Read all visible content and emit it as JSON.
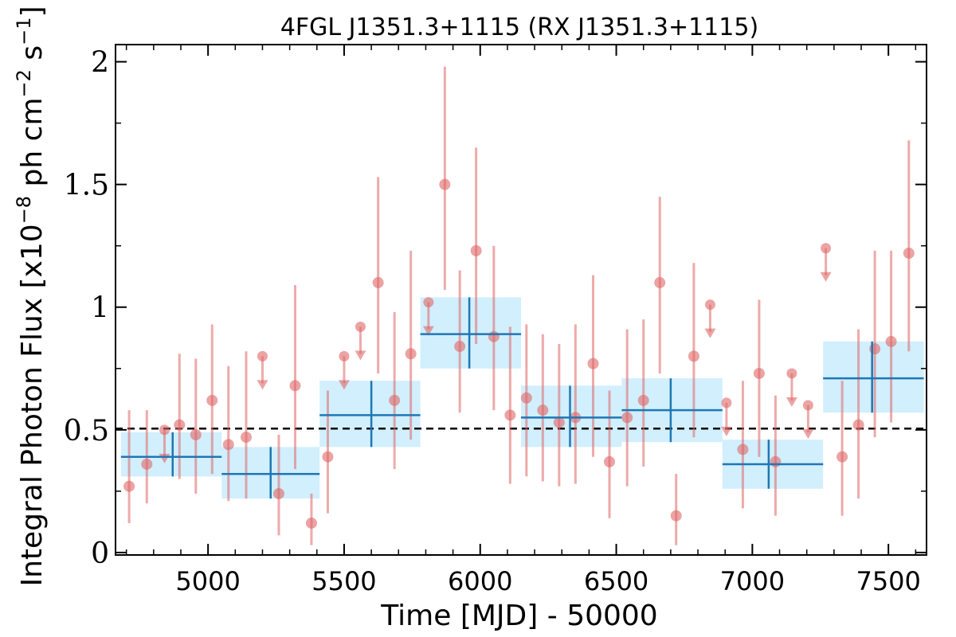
{
  "chart_data": {
    "type": "scatter",
    "title": "4FGL J1351.3+1115 (RX J1351.3+1115)",
    "xlabel": "Time [MJD] - 50000",
    "ylabel": "Integral Photon Flux [x10",
    "ylabel_exp1": "−8",
    "ylabel_mid": " ph cm",
    "ylabel_exp2": "−2",
    "ylabel_mid2": " s",
    "ylabel_exp3": "−1",
    "ylabel_end": "]",
    "xlim": [
      4660,
      7640
    ],
    "ylim": [
      -0.01,
      2.07
    ],
    "xticks": [
      5000,
      5500,
      6000,
      6500,
      7000,
      7500
    ],
    "xtick_labels": [
      "5000",
      "5500",
      "6000",
      "6500",
      "7000",
      "7500"
    ],
    "yticks": [
      0,
      0.5,
      1,
      1.5,
      2
    ],
    "ytick_labels": [
      "0",
      "0.5",
      "1",
      "1.5",
      "2"
    ],
    "mean_flux": 0.505,
    "colors": {
      "points": "#e06666",
      "binned_box": "#b3e5fc",
      "binned_line": "#1f77b4",
      "mean_line": "#000000"
    },
    "series": [
      {
        "kind": "short_bins",
        "points": [
          {
            "x": 4710,
            "y": 0.27,
            "err_lo": 0.15,
            "err_hi": 0.31
          },
          {
            "x": 4775,
            "y": 0.36,
            "err_lo": 0.16,
            "err_hi": 0.22
          },
          {
            "x": 4895,
            "y": 0.52,
            "err_lo": 0.22,
            "err_hi": 0.29
          },
          {
            "x": 4955,
            "y": 0.48,
            "err_lo": 0.24,
            "err_hi": 0.31
          },
          {
            "x": 5015,
            "y": 0.62,
            "err_lo": 0.3,
            "err_hi": 0.31
          },
          {
            "x": 5075,
            "y": 0.44,
            "err_lo": 0.23,
            "err_hi": 0.32
          },
          {
            "x": 5140,
            "y": 0.47,
            "err_lo": 0.25,
            "err_hi": 0.35
          },
          {
            "x": 5260,
            "y": 0.24,
            "err_lo": 0.17,
            "err_hi": 0.24
          },
          {
            "x": 5320,
            "y": 0.68,
            "err_lo": 0.34,
            "err_hi": 0.41
          },
          {
            "x": 5380,
            "y": 0.12,
            "err_lo": 0.09,
            "err_hi": 0.12
          },
          {
            "x": 5440,
            "y": 0.39,
            "err_lo": 0.23,
            "err_hi": 0.27
          },
          {
            "x": 5625,
            "y": 1.1,
            "err_lo": 0.37,
            "err_hi": 0.43
          },
          {
            "x": 5685,
            "y": 0.62,
            "err_lo": 0.28,
            "err_hi": 0.36
          },
          {
            "x": 5745,
            "y": 0.81,
            "err_lo": 0.35,
            "err_hi": 0.42
          },
          {
            "x": 5870,
            "y": 1.5,
            "err_lo": 0.43,
            "err_hi": 0.48
          },
          {
            "x": 5925,
            "y": 0.84,
            "err_lo": 0.27,
            "err_hi": 0.31
          },
          {
            "x": 5985,
            "y": 1.23,
            "err_lo": 0.38,
            "err_hi": 0.42
          },
          {
            "x": 6050,
            "y": 0.88,
            "err_lo": 0.3,
            "err_hi": 0.37
          },
          {
            "x": 6110,
            "y": 0.56,
            "err_lo": 0.28,
            "err_hi": 0.36
          },
          {
            "x": 6170,
            "y": 0.63,
            "err_lo": 0.32,
            "err_hi": 0.3
          },
          {
            "x": 6230,
            "y": 0.58,
            "err_lo": 0.29,
            "err_hi": 0.31
          },
          {
            "x": 6290,
            "y": 0.53,
            "err_lo": 0.26,
            "err_hi": 0.32
          },
          {
            "x": 6350,
            "y": 0.55,
            "err_lo": 0.27,
            "err_hi": 0.38
          },
          {
            "x": 6415,
            "y": 0.77,
            "err_lo": 0.38,
            "err_hi": 0.36
          },
          {
            "x": 6475,
            "y": 0.37,
            "err_lo": 0.23,
            "err_hi": 0.29
          },
          {
            "x": 6540,
            "y": 0.55,
            "err_lo": 0.28,
            "err_hi": 0.36
          },
          {
            "x": 6600,
            "y": 0.62,
            "err_lo": 0.27,
            "err_hi": 0.33
          },
          {
            "x": 6660,
            "y": 1.1,
            "err_lo": 0.37,
            "err_hi": 0.35
          },
          {
            "x": 6720,
            "y": 0.15,
            "err_lo": 0.12,
            "err_hi": 0.17
          },
          {
            "x": 6785,
            "y": 0.8,
            "err_lo": 0.33,
            "err_hi": 0.38
          },
          {
            "x": 6965,
            "y": 0.42,
            "err_lo": 0.24,
            "err_hi": 0.28
          },
          {
            "x": 7025,
            "y": 0.73,
            "err_lo": 0.34,
            "err_hi": 0.3
          },
          {
            "x": 7085,
            "y": 0.37,
            "err_lo": 0.22,
            "err_hi": 0.27
          },
          {
            "x": 7330,
            "y": 0.39,
            "err_lo": 0.24,
            "err_hi": 0.31
          },
          {
            "x": 7390,
            "y": 0.52,
            "err_lo": 0.3,
            "err_hi": 0.39
          },
          {
            "x": 7450,
            "y": 0.83,
            "err_lo": 0.36,
            "err_hi": 0.4
          },
          {
            "x": 7510,
            "y": 0.86,
            "err_lo": 0.33,
            "err_hi": 0.37
          },
          {
            "x": 7575,
            "y": 1.22,
            "err_lo": 0.4,
            "err_hi": 0.46
          }
        ],
        "upper_limits": [
          {
            "x": 4840,
            "y": 0.5
          },
          {
            "x": 5200,
            "y": 0.8
          },
          {
            "x": 5500,
            "y": 0.8
          },
          {
            "x": 5560,
            "y": 0.92
          },
          {
            "x": 5810,
            "y": 1.02
          },
          {
            "x": 6845,
            "y": 1.01
          },
          {
            "x": 6905,
            "y": 0.61
          },
          {
            "x": 7145,
            "y": 0.73
          },
          {
            "x": 7205,
            "y": 0.6
          },
          {
            "x": 7270,
            "y": 1.24
          }
        ]
      },
      {
        "kind": "long_bins",
        "bins": [
          {
            "x0": 4680,
            "x1": 5050,
            "y": 0.39,
            "ylo": 0.31,
            "yhi": 0.49,
            "xc": 4870
          },
          {
            "x0": 5050,
            "x1": 5410,
            "y": 0.32,
            "ylo": 0.22,
            "yhi": 0.43,
            "xc": 5230
          },
          {
            "x0": 5410,
            "x1": 5780,
            "y": 0.56,
            "ylo": 0.43,
            "yhi": 0.7,
            "xc": 5600
          },
          {
            "x0": 5780,
            "x1": 6150,
            "y": 0.89,
            "ylo": 0.75,
            "yhi": 1.04,
            "xc": 5960
          },
          {
            "x0": 6150,
            "x1": 6520,
            "y": 0.55,
            "ylo": 0.43,
            "yhi": 0.68,
            "xc": 6330
          },
          {
            "x0": 6520,
            "x1": 6890,
            "y": 0.58,
            "ylo": 0.45,
            "yhi": 0.71,
            "xc": 6700
          },
          {
            "x0": 6890,
            "x1": 7260,
            "y": 0.36,
            "ylo": 0.26,
            "yhi": 0.46,
            "xc": 7060
          },
          {
            "x0": 7260,
            "x1": 7630,
            "y": 0.71,
            "ylo": 0.57,
            "yhi": 0.86,
            "xc": 7440
          }
        ]
      }
    ]
  }
}
